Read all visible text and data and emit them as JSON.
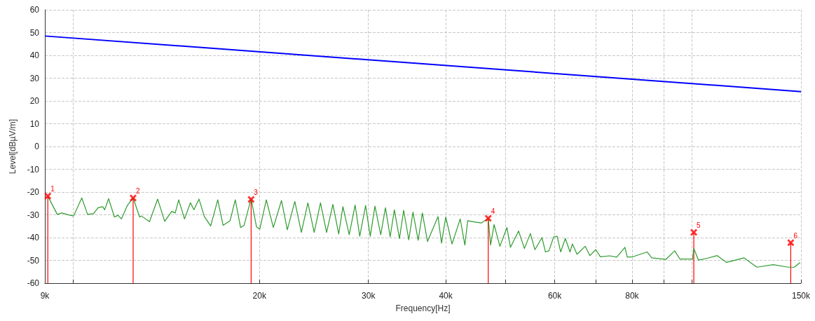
{
  "chart_data": {
    "type": "line",
    "xlabel": "Frequency[Hz]",
    "ylabel": "Level[dBµV/m]",
    "log": "x",
    "grid": true,
    "line_style": "solid",
    "xlim": [
      9000,
      150000
    ],
    "xticks": [
      {
        "value": 9000,
        "label": "9k"
      },
      {
        "value": 10000,
        "label": null
      },
      {
        "value": 20000,
        "label": "20k"
      },
      {
        "value": 30000,
        "label": "30k"
      },
      {
        "value": 40000,
        "label": "40k"
      },
      {
        "value": 50000,
        "label": null
      },
      {
        "value": 60000,
        "label": "60k"
      },
      {
        "value": 70000,
        "label": null
      },
      {
        "value": 80000,
        "label": "80k"
      },
      {
        "value": 90000,
        "label": null
      },
      {
        "value": 100000,
        "label": null
      },
      {
        "value": 150000,
        "label": "150k"
      }
    ],
    "ylim": [
      -60,
      60
    ],
    "yticks": [
      -60,
      -50,
      -40,
      -30,
      -20,
      -10,
      0,
      10,
      20,
      30,
      40,
      50,
      60
    ],
    "series": [
      {
        "color": "#0000ff",
        "marker": "none",
        "x": [
          9000,
          150000
        ],
        "values": [
          48.5,
          24.1
        ]
      },
      {
        "color": "#2e9b2e",
        "marker": "none",
        "x": [
          9101,
          9425,
          9589,
          9885,
          10015,
          10326,
          10551,
          10784,
          10973,
          11165,
          11243,
          11410,
          11660,
          11813,
          11969,
          12233,
          12501,
          12807,
          12887,
          13284,
          13694,
          14057,
          14429,
          14618,
          14810,
          15134,
          15469,
          15672,
          15973,
          16296,
          16683,
          17124,
          17467,
          17930,
          18279,
          18644,
          18888,
          19388,
          19782,
          20026,
          20516,
          21059,
          21710,
          22186,
          22813,
          23374,
          23949,
          24516,
          25099,
          25675,
          26284,
          26860,
          27284,
          27931,
          28549,
          29045,
          29687,
          30203,
          30736,
          31407,
          31962,
          32526,
          33037,
          33671,
          34204,
          34860,
          35411,
          36101,
          36669,
          37376,
          38867,
          39375,
          39998,
          40945,
          42213,
          42950,
          43399,
          44475,
          45651,
          46854,
          47259,
          47882,
          48932,
          50222,
          50884,
          52460,
          53606,
          54793,
          55743,
          57218,
          57966,
          58730,
          59760,
          60543,
          61340,
          62418,
          63508,
          64076,
          65185,
          67203,
          68389,
          69883,
          71117,
          73627,
          75567,
          77915,
          78588,
          80304,
          84605,
          86091,
          90702,
          93756,
          95562,
          100233,
          100674,
          102451,
          106070,
          109814,
          113724,
          121384,
          127314,
          135282,
          143157,
          146297,
          149536
        ],
        "values": [
          -21.8,
          -29.8,
          -29.2,
          -30.2,
          -30.5,
          -22.6,
          -29.8,
          -29.5,
          -26.9,
          -26.4,
          -27.8,
          -22.9,
          -31,
          -30.2,
          -31.8,
          -25.9,
          -22.6,
          -31,
          -30.5,
          -33,
          -23.1,
          -32.9,
          -28.5,
          -29.2,
          -23.4,
          -31.8,
          -24.7,
          -27.8,
          -23.1,
          -30.8,
          -34.9,
          -23.4,
          -34.6,
          -32.6,
          -23.4,
          -35.6,
          -34.6,
          -22.9,
          -35.3,
          -36.3,
          -23.4,
          -35.6,
          -23.7,
          -36.6,
          -24.1,
          -37.7,
          -24.7,
          -37.7,
          -24.7,
          -37.7,
          -25.4,
          -38.4,
          -26.4,
          -38.7,
          -25.7,
          -39.4,
          -25.9,
          -39.4,
          -26.2,
          -38.7,
          -26.9,
          -39.7,
          -27.8,
          -40.4,
          -28,
          -41,
          -28.8,
          -41.2,
          -29.2,
          -41.7,
          -30.8,
          -42.4,
          -31,
          -42.8,
          -31.8,
          -43.3,
          -32.6,
          -33.1,
          -33.6,
          -31.5,
          -43.3,
          -34.3,
          -43.8,
          -35.6,
          -44.3,
          -37.1,
          -44.8,
          -38.2,
          -45.3,
          -40,
          -46.3,
          -45.8,
          -39.7,
          -39.4,
          -46.3,
          -40.4,
          -46.3,
          -42.8,
          -47.3,
          -43.8,
          -47.9,
          -45.3,
          -48.4,
          -48,
          -48.6,
          -44.3,
          -48.6,
          -48.4,
          -46.3,
          -48.9,
          -49.6,
          -45.8,
          -49.4,
          -49.4,
          -44.8,
          -49.9,
          -49,
          -47.9,
          -50.9,
          -48.9,
          -53,
          -51.9,
          -53,
          -53,
          -50.9
        ]
      },
      {
        "type": "lollipop",
        "color": "#ff0000",
        "marker": "cross",
        "x": [
          9100,
          12500,
          19390,
          46850,
          100670,
          144390
        ],
        "values": [
          -21.8,
          -22.6,
          -23.2,
          -31.5,
          -37.7,
          -42.2
        ]
      }
    ],
    "annotations": [
      {
        "text": "1",
        "x": 9100,
        "y": -21.8
      },
      {
        "text": "2",
        "x": 12500,
        "y": -22.6
      },
      {
        "text": "3",
        "x": 19390,
        "y": -23.2
      },
      {
        "text": "4",
        "x": 46850,
        "y": -31.5
      },
      {
        "text": "5",
        "x": 100670,
        "y": -37.7
      },
      {
        "text": "6",
        "x": 144390,
        "y": -42.2
      }
    ]
  }
}
